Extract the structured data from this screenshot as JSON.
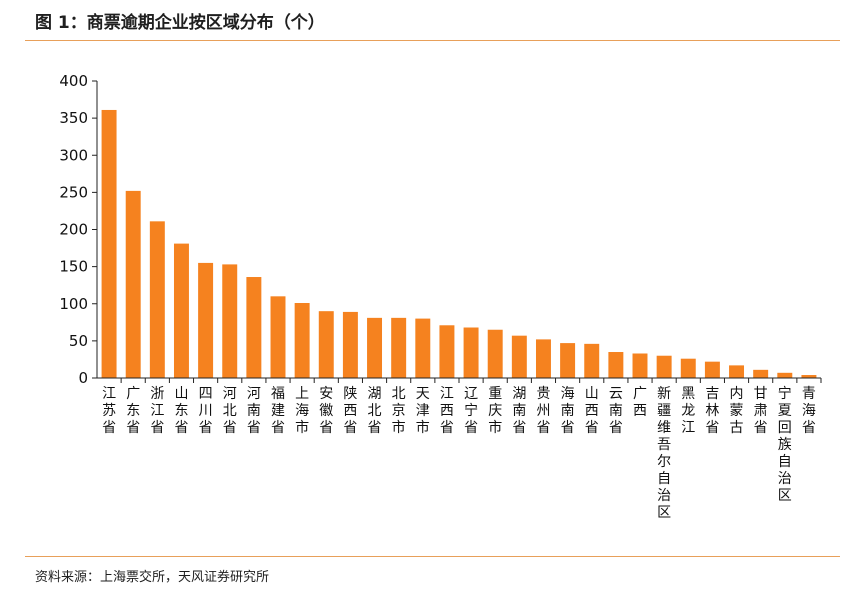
{
  "header": {
    "title": "图 1：商票逾期企业按区域分布（个）"
  },
  "footer": {
    "source": "资料来源：上海票交所，天风证券研究所"
  },
  "colors": {
    "bar": "#f5821f",
    "rule": "#e8a05a",
    "axis": "#222222"
  },
  "chart_data": {
    "type": "bar",
    "title": "图 1：商票逾期企业按区域分布（个）",
    "xlabel": "",
    "ylabel": "",
    "ylim": [
      0,
      400
    ],
    "yticks": [
      0,
      50,
      100,
      150,
      200,
      250,
      300,
      350,
      400
    ],
    "grid": false,
    "legend": "none",
    "categories": [
      "江苏省",
      "广东省",
      "浙江省",
      "山东省",
      "四川省",
      "河北省",
      "河南省",
      "福建省",
      "上海市",
      "安徽省",
      "陕西省",
      "湖北省",
      "北京市",
      "天津市",
      "江西省",
      "辽宁省",
      "重庆市",
      "湖南省",
      "贵州省",
      "海南省",
      "山西省",
      "云南省",
      "广西",
      "新疆维吾尔自治区",
      "黑龙江",
      "吉林省",
      "内蒙古",
      "甘肃省",
      "宁夏回族自治区",
      "青海省"
    ],
    "values": [
      361,
      252,
      211,
      181,
      155,
      153,
      136,
      110,
      101,
      90,
      89,
      81,
      81,
      80,
      71,
      68,
      65,
      57,
      52,
      47,
      46,
      35,
      33,
      30,
      26,
      22,
      17,
      11,
      7,
      4
    ]
  }
}
